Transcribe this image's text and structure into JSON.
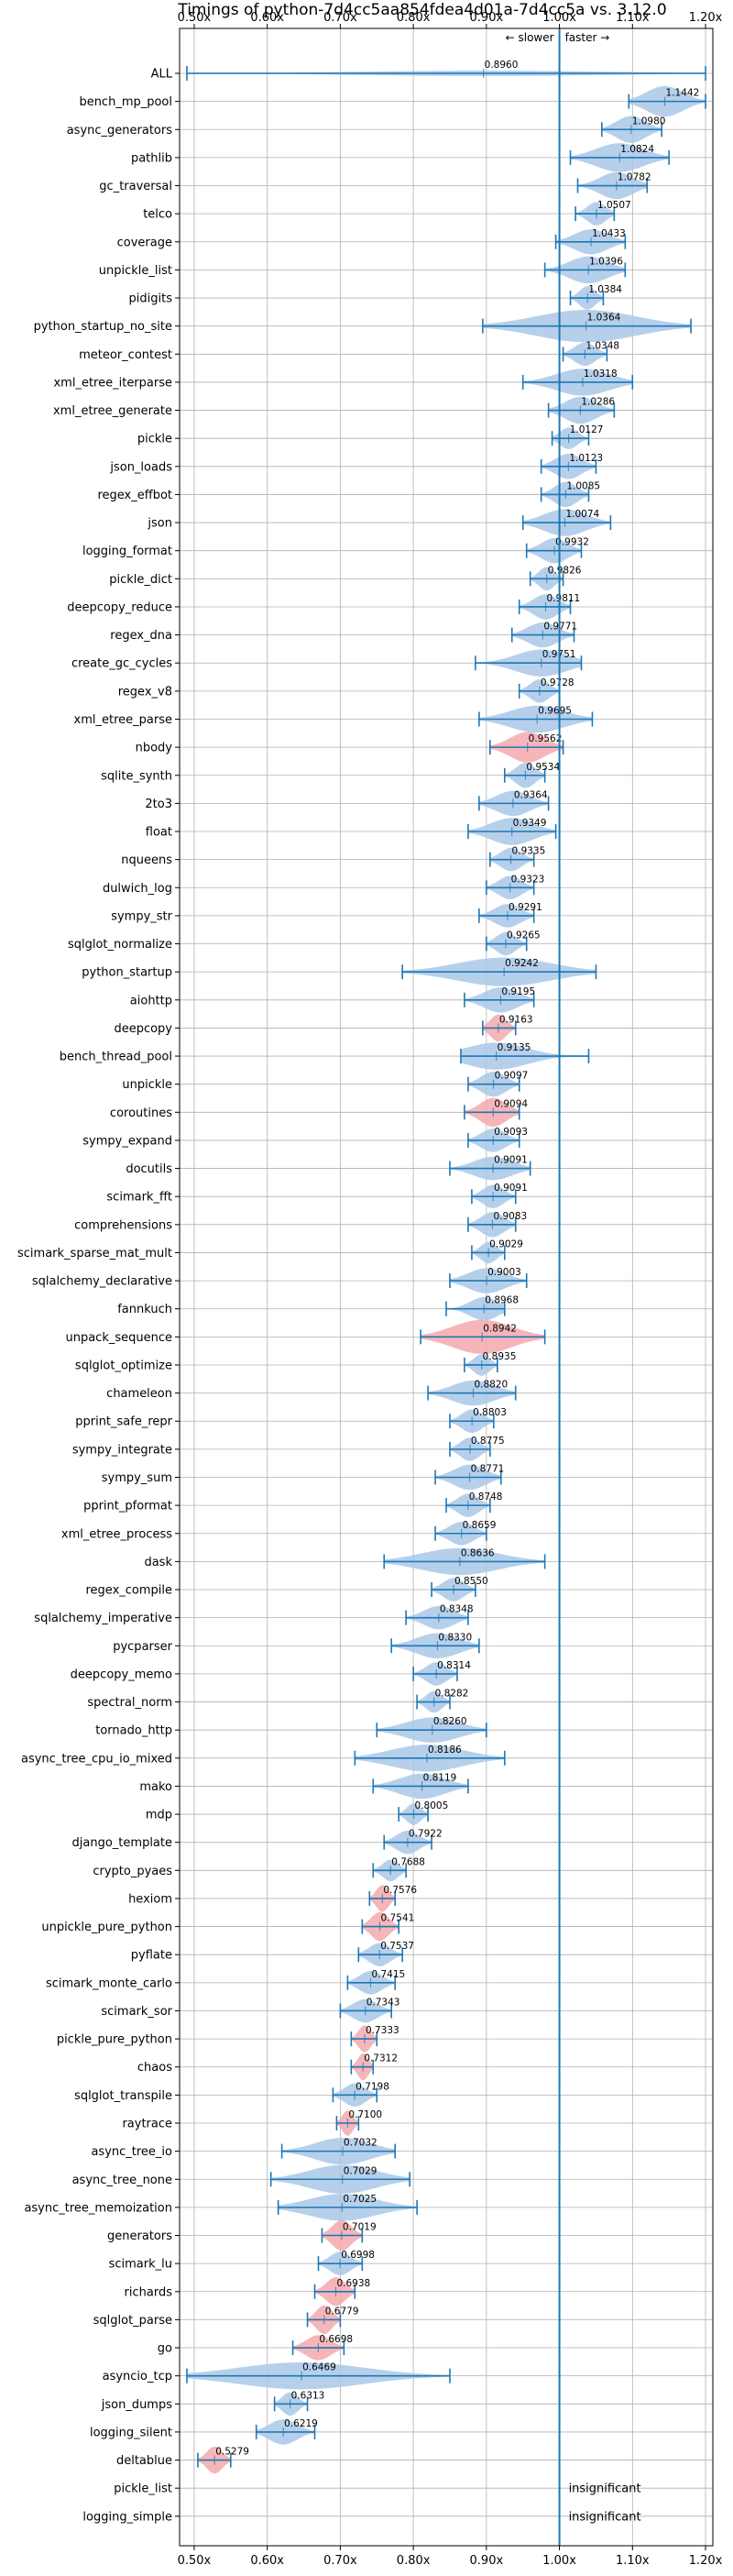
{
  "chart_data": {
    "type": "violin",
    "title": "Timings of python-7d4cc5aa854fdea4d01a-7d4cc5a vs. 3.12.0",
    "xlim": [
      0.48,
      1.21
    ],
    "reference_line": 1.0,
    "xticks": [
      0.5,
      0.6,
      0.7,
      0.8,
      0.9,
      1.0,
      1.1,
      1.2
    ],
    "xtick_labels": [
      "0.50x",
      "0.60x",
      "0.70x",
      "0.80x",
      "0.90x",
      "1.00x",
      "1.10x",
      "1.20x"
    ],
    "slower_label": "← slower",
    "faster_label": "faster →",
    "insignificant_label": "insignificant",
    "colors": {
      "normal": "#a9c8e8",
      "highlight": "#f5a9ad",
      "line": "#1f77b4",
      "grid": "#b0b0b0"
    },
    "benchmarks": [
      {
        "name": "ALL",
        "mean": 0.896,
        "label": "0.8960",
        "min": 0.49,
        "max": 1.2,
        "hw": 0.06,
        "hl": false
      },
      {
        "name": "bench_mp_pool",
        "mean": 1.1442,
        "label": "1.1442",
        "min": 1.095,
        "max": 1.2,
        "hw": 0.34,
        "hl": false
      },
      {
        "name": "async_generators",
        "mean": 1.098,
        "label": "1.0980",
        "min": 1.058,
        "max": 1.14,
        "hw": 0.3,
        "hl": false
      },
      {
        "name": "pathlib",
        "mean": 1.0824,
        "label": "1.0824",
        "min": 1.015,
        "max": 1.15,
        "hw": 0.32,
        "hl": false
      },
      {
        "name": "gc_traversal",
        "mean": 1.0782,
        "label": "1.0782",
        "min": 1.025,
        "max": 1.12,
        "hw": 0.3,
        "hl": false
      },
      {
        "name": "telco",
        "mean": 1.0507,
        "label": "1.0507",
        "min": 1.022,
        "max": 1.075,
        "hw": 0.26,
        "hl": false
      },
      {
        "name": "coverage",
        "mean": 1.0433,
        "label": "1.0433",
        "min": 0.995,
        "max": 1.09,
        "hw": 0.28,
        "hl": false
      },
      {
        "name": "unpickle_list",
        "mean": 1.0396,
        "label": "1.0396",
        "min": 0.98,
        "max": 1.09,
        "hw": 0.3,
        "hl": false
      },
      {
        "name": "pidigits",
        "mean": 1.0384,
        "label": "1.0384",
        "min": 1.015,
        "max": 1.06,
        "hw": 0.26,
        "hl": false
      },
      {
        "name": "python_startup_no_site",
        "mean": 1.0364,
        "label": "1.0364",
        "min": 0.895,
        "max": 1.18,
        "hw": 0.36,
        "hl": false
      },
      {
        "name": "meteor_contest",
        "mean": 1.0348,
        "label": "1.0348",
        "min": 1.005,
        "max": 1.065,
        "hw": 0.26,
        "hl": false
      },
      {
        "name": "xml_etree_iterparse",
        "mean": 1.0318,
        "label": "1.0318",
        "min": 0.95,
        "max": 1.1,
        "hw": 0.3,
        "hl": false
      },
      {
        "name": "xml_etree_generate",
        "mean": 1.0286,
        "label": "1.0286",
        "min": 0.985,
        "max": 1.075,
        "hw": 0.3,
        "hl": false
      },
      {
        "name": "pickle",
        "mean": 1.0127,
        "label": "1.0127",
        "min": 0.99,
        "max": 1.04,
        "hw": 0.24,
        "hl": false
      },
      {
        "name": "json_loads",
        "mean": 1.0123,
        "label": "1.0123",
        "min": 0.975,
        "max": 1.05,
        "hw": 0.28,
        "hl": false
      },
      {
        "name": "regex_effbot",
        "mean": 1.0085,
        "label": "1.0085",
        "min": 0.975,
        "max": 1.04,
        "hw": 0.28,
        "hl": false
      },
      {
        "name": "json",
        "mean": 1.0074,
        "label": "1.0074",
        "min": 0.95,
        "max": 1.07,
        "hw": 0.3,
        "hl": false
      },
      {
        "name": "logging_format",
        "mean": 0.9932,
        "label": "0.9932",
        "min": 0.955,
        "max": 1.03,
        "hw": 0.28,
        "hl": false
      },
      {
        "name": "pickle_dict",
        "mean": 0.9826,
        "label": "0.9826",
        "min": 0.96,
        "max": 1.005,
        "hw": 0.26,
        "hl": false
      },
      {
        "name": "deepcopy_reduce",
        "mean": 0.9811,
        "label": "0.9811",
        "min": 0.945,
        "max": 1.015,
        "hw": 0.28,
        "hl": false
      },
      {
        "name": "regex_dna",
        "mean": 0.9771,
        "label": "0.9771",
        "min": 0.935,
        "max": 1.02,
        "hw": 0.28,
        "hl": false
      },
      {
        "name": "create_gc_cycles",
        "mean": 0.9751,
        "label": "0.9751",
        "min": 0.885,
        "max": 1.03,
        "hw": 0.3,
        "hl": false
      },
      {
        "name": "regex_v8",
        "mean": 0.9728,
        "label": "0.9728",
        "min": 0.945,
        "max": 1.0,
        "hw": 0.26,
        "hl": false
      },
      {
        "name": "xml_etree_parse",
        "mean": 0.9695,
        "label": "0.9695",
        "min": 0.89,
        "max": 1.045,
        "hw": 0.3,
        "hl": false
      },
      {
        "name": "nbody",
        "mean": 0.9562,
        "label": "0.9562",
        "min": 0.905,
        "max": 1.005,
        "hw": 0.34,
        "hl": true
      },
      {
        "name": "sqlite_synth",
        "mean": 0.9534,
        "label": "0.9534",
        "min": 0.925,
        "max": 0.98,
        "hw": 0.28,
        "hl": false
      },
      {
        "name": "2to3",
        "mean": 0.9364,
        "label": "0.9364",
        "min": 0.89,
        "max": 0.985,
        "hw": 0.28,
        "hl": false
      },
      {
        "name": "float",
        "mean": 0.9349,
        "label": "0.9349",
        "min": 0.875,
        "max": 0.995,
        "hw": 0.3,
        "hl": false
      },
      {
        "name": "nqueens",
        "mean": 0.9335,
        "label": "0.9335",
        "min": 0.905,
        "max": 0.965,
        "hw": 0.26,
        "hl": false
      },
      {
        "name": "dulwich_log",
        "mean": 0.9323,
        "label": "0.9323",
        "min": 0.9,
        "max": 0.965,
        "hw": 0.26,
        "hl": false
      },
      {
        "name": "sympy_str",
        "mean": 0.9291,
        "label": "0.9291",
        "min": 0.89,
        "max": 0.965,
        "hw": 0.26,
        "hl": false
      },
      {
        "name": "sqlglot_normalize",
        "mean": 0.9265,
        "label": "0.9265",
        "min": 0.9,
        "max": 0.955,
        "hw": 0.26,
        "hl": false
      },
      {
        "name": "python_startup",
        "mean": 0.9242,
        "label": "0.9242",
        "min": 0.785,
        "max": 1.05,
        "hw": 0.32,
        "hl": false
      },
      {
        "name": "aiohttp",
        "mean": 0.9195,
        "label": "0.9195",
        "min": 0.87,
        "max": 0.965,
        "hw": 0.28,
        "hl": false
      },
      {
        "name": "deepcopy",
        "mean": 0.9163,
        "label": "0.9163",
        "min": 0.895,
        "max": 0.94,
        "hw": 0.3,
        "hl": true
      },
      {
        "name": "bench_thread_pool",
        "mean": 0.9135,
        "label": "0.9135",
        "min": 0.865,
        "max": 1.04,
        "hw": 0.3,
        "hl": false
      },
      {
        "name": "unpickle",
        "mean": 0.9097,
        "label": "0.9097",
        "min": 0.875,
        "max": 0.945,
        "hw": 0.28,
        "hl": false
      },
      {
        "name": "coroutines",
        "mean": 0.9094,
        "label": "0.9094",
        "min": 0.87,
        "max": 0.945,
        "hw": 0.32,
        "hl": true
      },
      {
        "name": "sympy_expand",
        "mean": 0.9093,
        "label": "0.9093",
        "min": 0.875,
        "max": 0.945,
        "hw": 0.26,
        "hl": false
      },
      {
        "name": "docutils",
        "mean": 0.9091,
        "label": "0.9091",
        "min": 0.85,
        "max": 0.96,
        "hw": 0.26,
        "hl": false
      },
      {
        "name": "scimark_fft",
        "mean": 0.9091,
        "label": "0.9091",
        "min": 0.88,
        "max": 0.94,
        "hw": 0.26,
        "hl": false
      },
      {
        "name": "comprehensions",
        "mean": 0.9083,
        "label": "0.9083",
        "min": 0.875,
        "max": 0.94,
        "hw": 0.28,
        "hl": false
      },
      {
        "name": "scimark_sparse_mat_mult",
        "mean": 0.9029,
        "label": "0.9029",
        "min": 0.88,
        "max": 0.925,
        "hw": 0.24,
        "hl": false
      },
      {
        "name": "sqlalchemy_declarative",
        "mean": 0.9003,
        "label": "0.9003",
        "min": 0.85,
        "max": 0.955,
        "hw": 0.28,
        "hl": false
      },
      {
        "name": "fannkuch",
        "mean": 0.8968,
        "label": "0.8968",
        "min": 0.845,
        "max": 0.925,
        "hw": 0.26,
        "hl": false
      },
      {
        "name": "unpack_sequence",
        "mean": 0.8942,
        "label": "0.8942",
        "min": 0.81,
        "max": 0.98,
        "hw": 0.38,
        "hl": true
      },
      {
        "name": "sqlglot_optimize",
        "mean": 0.8935,
        "label": "0.8935",
        "min": 0.87,
        "max": 0.915,
        "hw": 0.24,
        "hl": false
      },
      {
        "name": "chameleon",
        "mean": 0.882,
        "label": "0.8820",
        "min": 0.82,
        "max": 0.94,
        "hw": 0.28,
        "hl": false
      },
      {
        "name": "pprint_safe_repr",
        "mean": 0.8803,
        "label": "0.8803",
        "min": 0.85,
        "max": 0.91,
        "hw": 0.26,
        "hl": false
      },
      {
        "name": "sympy_integrate",
        "mean": 0.8775,
        "label": "0.8775",
        "min": 0.85,
        "max": 0.905,
        "hw": 0.26,
        "hl": false
      },
      {
        "name": "sympy_sum",
        "mean": 0.8771,
        "label": "0.8771",
        "min": 0.83,
        "max": 0.92,
        "hw": 0.28,
        "hl": false
      },
      {
        "name": "pprint_pformat",
        "mean": 0.8748,
        "label": "0.8748",
        "min": 0.845,
        "max": 0.905,
        "hw": 0.26,
        "hl": false
      },
      {
        "name": "xml_etree_process",
        "mean": 0.8659,
        "label": "0.8659",
        "min": 0.83,
        "max": 0.9,
        "hw": 0.26,
        "hl": false
      },
      {
        "name": "dask",
        "mean": 0.8636,
        "label": "0.8636",
        "min": 0.76,
        "max": 0.98,
        "hw": 0.3,
        "hl": false
      },
      {
        "name": "regex_compile",
        "mean": 0.855,
        "label": "0.8550",
        "min": 0.825,
        "max": 0.885,
        "hw": 0.26,
        "hl": false
      },
      {
        "name": "sqlalchemy_imperative",
        "mean": 0.8348,
        "label": "0.8348",
        "min": 0.79,
        "max": 0.875,
        "hw": 0.26,
        "hl": false
      },
      {
        "name": "pycparser",
        "mean": 0.833,
        "label": "0.8330",
        "min": 0.77,
        "max": 0.89,
        "hw": 0.28,
        "hl": false
      },
      {
        "name": "deepcopy_memo",
        "mean": 0.8314,
        "label": "0.8314",
        "min": 0.8,
        "max": 0.86,
        "hw": 0.26,
        "hl": false
      },
      {
        "name": "spectral_norm",
        "mean": 0.8282,
        "label": "0.8282",
        "min": 0.805,
        "max": 0.85,
        "hw": 0.24,
        "hl": false
      },
      {
        "name": "tornado_http",
        "mean": 0.826,
        "label": "0.8260",
        "min": 0.75,
        "max": 0.9,
        "hw": 0.28,
        "hl": false
      },
      {
        "name": "async_tree_cpu_io_mixed",
        "mean": 0.8186,
        "label": "0.8186",
        "min": 0.72,
        "max": 0.925,
        "hw": 0.3,
        "hl": false
      },
      {
        "name": "mako",
        "mean": 0.8119,
        "label": "0.8119",
        "min": 0.745,
        "max": 0.875,
        "hw": 0.28,
        "hl": false
      },
      {
        "name": "mdp",
        "mean": 0.8005,
        "label": "0.8005",
        "min": 0.78,
        "max": 0.82,
        "hw": 0.24,
        "hl": false
      },
      {
        "name": "django_template",
        "mean": 0.7922,
        "label": "0.7922",
        "min": 0.76,
        "max": 0.825,
        "hw": 0.26,
        "hl": false
      },
      {
        "name": "crypto_pyaes",
        "mean": 0.7688,
        "label": "0.7688",
        "min": 0.745,
        "max": 0.79,
        "hw": 0.24,
        "hl": false
      },
      {
        "name": "hexiom",
        "mean": 0.7576,
        "label": "0.7576",
        "min": 0.74,
        "max": 0.775,
        "hw": 0.3,
        "hl": true
      },
      {
        "name": "unpickle_pure_python",
        "mean": 0.7541,
        "label": "0.7541",
        "min": 0.73,
        "max": 0.78,
        "hw": 0.32,
        "hl": true
      },
      {
        "name": "pyflate",
        "mean": 0.7537,
        "label": "0.7537",
        "min": 0.725,
        "max": 0.785,
        "hw": 0.26,
        "hl": false
      },
      {
        "name": "scimark_monte_carlo",
        "mean": 0.7415,
        "label": "0.7415",
        "min": 0.71,
        "max": 0.775,
        "hw": 0.26,
        "hl": false
      },
      {
        "name": "scimark_sor",
        "mean": 0.7343,
        "label": "0.7343",
        "min": 0.7,
        "max": 0.77,
        "hw": 0.26,
        "hl": false
      },
      {
        "name": "pickle_pure_python",
        "mean": 0.7333,
        "label": "0.7333",
        "min": 0.715,
        "max": 0.75,
        "hw": 0.3,
        "hl": true
      },
      {
        "name": "chaos",
        "mean": 0.7312,
        "label": "0.7312",
        "min": 0.715,
        "max": 0.745,
        "hw": 0.3,
        "hl": true
      },
      {
        "name": "sqlglot_transpile",
        "mean": 0.7198,
        "label": "0.7198",
        "min": 0.69,
        "max": 0.75,
        "hw": 0.26,
        "hl": false
      },
      {
        "name": "raytrace",
        "mean": 0.71,
        "label": "0.7100",
        "min": 0.695,
        "max": 0.725,
        "hw": 0.28,
        "hl": true
      },
      {
        "name": "async_tree_io",
        "mean": 0.7032,
        "label": "0.7032",
        "min": 0.62,
        "max": 0.775,
        "hw": 0.3,
        "hl": false
      },
      {
        "name": "async_tree_none",
        "mean": 0.7029,
        "label": "0.7029",
        "min": 0.605,
        "max": 0.795,
        "hw": 0.32,
        "hl": false
      },
      {
        "name": "async_tree_memoization",
        "mean": 0.7025,
        "label": "0.7025",
        "min": 0.615,
        "max": 0.805,
        "hw": 0.3,
        "hl": false
      },
      {
        "name": "generators",
        "mean": 0.7019,
        "label": "0.7019",
        "min": 0.675,
        "max": 0.73,
        "hw": 0.34,
        "hl": true
      },
      {
        "name": "scimark_lu",
        "mean": 0.6998,
        "label": "0.6998",
        "min": 0.67,
        "max": 0.73,
        "hw": 0.26,
        "hl": false
      },
      {
        "name": "richards",
        "mean": 0.6938,
        "label": "0.6938",
        "min": 0.665,
        "max": 0.72,
        "hw": 0.32,
        "hl": true
      },
      {
        "name": "sqlglot_parse",
        "mean": 0.6779,
        "label": "0.6779",
        "min": 0.655,
        "max": 0.7,
        "hw": 0.32,
        "hl": true
      },
      {
        "name": "go",
        "mean": 0.6698,
        "label": "0.6698",
        "min": 0.635,
        "max": 0.705,
        "hw": 0.28,
        "hl": true
      },
      {
        "name": "asyncio_tcp",
        "mean": 0.6469,
        "label": "0.6469",
        "min": 0.49,
        "max": 0.85,
        "hw": 0.3,
        "hl": false
      },
      {
        "name": "json_dumps",
        "mean": 0.6313,
        "label": "0.6313",
        "min": 0.61,
        "max": 0.655,
        "hw": 0.26,
        "hl": false
      },
      {
        "name": "logging_silent",
        "mean": 0.6219,
        "label": "0.6219",
        "min": 0.585,
        "max": 0.665,
        "hw": 0.28,
        "hl": false
      },
      {
        "name": "deltablue",
        "mean": 0.5279,
        "label": "0.5279",
        "min": 0.505,
        "max": 0.55,
        "hw": 0.3,
        "hl": true
      },
      {
        "name": "pickle_list",
        "insignificant": true
      },
      {
        "name": "logging_simple",
        "insignificant": true
      }
    ]
  }
}
